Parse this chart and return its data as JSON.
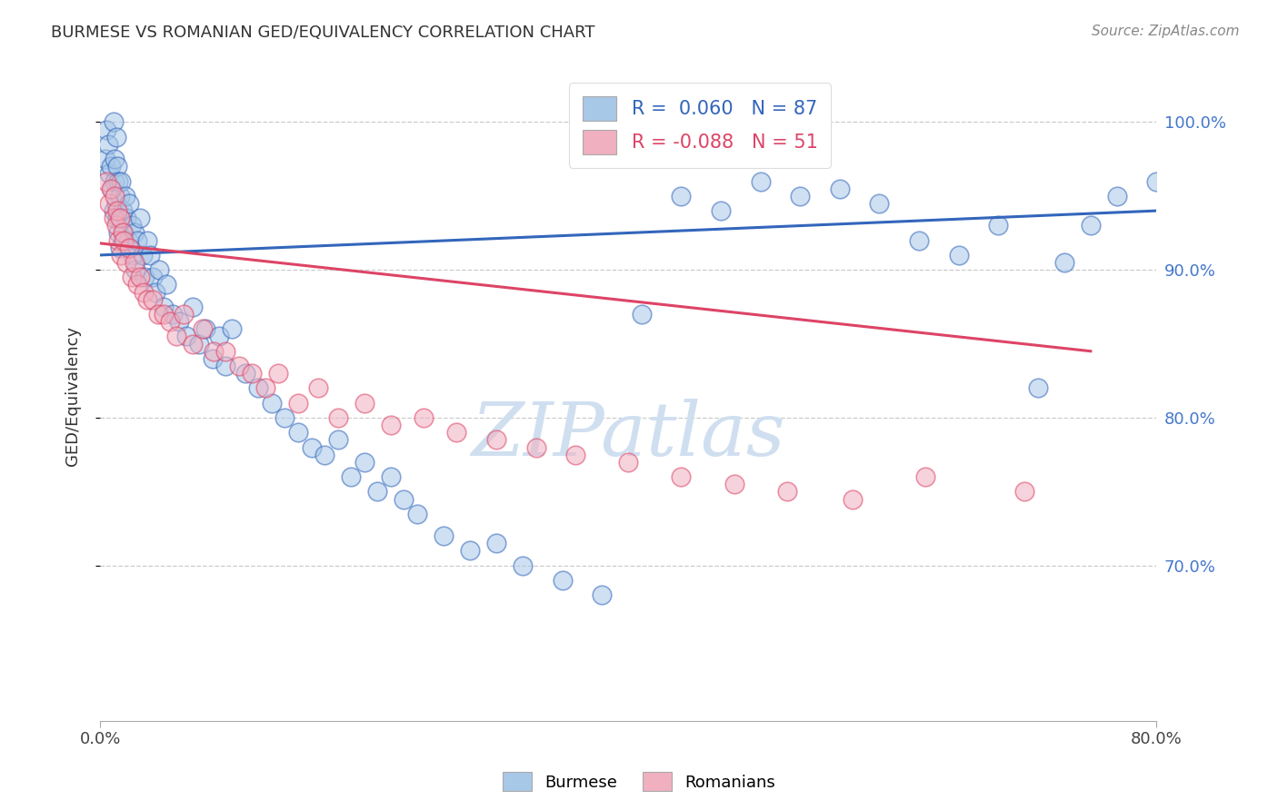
{
  "title": "BURMESE VS ROMANIAN GED/EQUIVALENCY CORRELATION CHART",
  "source": "Source: ZipAtlas.com",
  "ylabel": "GED/Equivalency",
  "ytick_labels": [
    "100.0%",
    "90.0%",
    "80.0%",
    "70.0%"
  ],
  "ytick_values": [
    1.0,
    0.9,
    0.8,
    0.7
  ],
  "xlim": [
    0.0,
    0.8
  ],
  "ylim": [
    0.595,
    1.035
  ],
  "burmese_R": 0.06,
  "burmese_N": 87,
  "romanian_R": -0.088,
  "romanian_N": 51,
  "burmese_color": "#a8c8e8",
  "romanian_color": "#f0b0c0",
  "burmese_line_color": "#3366bb",
  "romanian_line_color": "#dd4466",
  "watermark_color": "#d0dff0",
  "legend_label_color": "#222222",
  "legend_R_color": "#3366bb",
  "legend_N_color": "#222222",
  "burmese_x": [
    0.004,
    0.005,
    0.006,
    0.007,
    0.008,
    0.009,
    0.01,
    0.01,
    0.011,
    0.011,
    0.012,
    0.012,
    0.013,
    0.013,
    0.014,
    0.014,
    0.015,
    0.015,
    0.016,
    0.016,
    0.017,
    0.018,
    0.019,
    0.02,
    0.021,
    0.022,
    0.023,
    0.024,
    0.025,
    0.026,
    0.027,
    0.028,
    0.03,
    0.032,
    0.034,
    0.036,
    0.038,
    0.04,
    0.042,
    0.045,
    0.048,
    0.05,
    0.055,
    0.06,
    0.065,
    0.07,
    0.075,
    0.08,
    0.085,
    0.09,
    0.095,
    0.1,
    0.11,
    0.12,
    0.13,
    0.14,
    0.15,
    0.16,
    0.17,
    0.18,
    0.19,
    0.2,
    0.21,
    0.22,
    0.23,
    0.24,
    0.26,
    0.28,
    0.3,
    0.32,
    0.35,
    0.38,
    0.41,
    0.44,
    0.47,
    0.5,
    0.53,
    0.56,
    0.59,
    0.62,
    0.65,
    0.68,
    0.71,
    0.73,
    0.75,
    0.77,
    0.8
  ],
  "burmese_y": [
    0.975,
    0.995,
    0.985,
    0.965,
    0.97,
    0.955,
    1.0,
    0.94,
    0.96,
    0.975,
    0.945,
    0.99,
    0.935,
    0.97,
    0.925,
    0.96,
    0.915,
    0.95,
    0.935,
    0.96,
    0.94,
    0.925,
    0.95,
    0.935,
    0.92,
    0.945,
    0.915,
    0.93,
    0.91,
    0.925,
    0.9,
    0.92,
    0.935,
    0.91,
    0.895,
    0.92,
    0.91,
    0.895,
    0.885,
    0.9,
    0.875,
    0.89,
    0.87,
    0.865,
    0.855,
    0.875,
    0.85,
    0.86,
    0.84,
    0.855,
    0.835,
    0.86,
    0.83,
    0.82,
    0.81,
    0.8,
    0.79,
    0.78,
    0.775,
    0.785,
    0.76,
    0.77,
    0.75,
    0.76,
    0.745,
    0.735,
    0.72,
    0.71,
    0.715,
    0.7,
    0.69,
    0.68,
    0.87,
    0.95,
    0.94,
    0.96,
    0.95,
    0.955,
    0.945,
    0.92,
    0.91,
    0.93,
    0.82,
    0.905,
    0.93,
    0.95,
    0.96
  ],
  "romanian_x": [
    0.005,
    0.007,
    0.008,
    0.01,
    0.011,
    0.012,
    0.013,
    0.014,
    0.015,
    0.016,
    0.017,
    0.018,
    0.02,
    0.022,
    0.024,
    0.026,
    0.028,
    0.03,
    0.033,
    0.036,
    0.04,
    0.044,
    0.048,
    0.053,
    0.058,
    0.063,
    0.07,
    0.078,
    0.086,
    0.095,
    0.105,
    0.115,
    0.125,
    0.135,
    0.15,
    0.165,
    0.18,
    0.2,
    0.22,
    0.245,
    0.27,
    0.3,
    0.33,
    0.36,
    0.4,
    0.44,
    0.48,
    0.52,
    0.57,
    0.625,
    0.7
  ],
  "romanian_y": [
    0.96,
    0.945,
    0.955,
    0.935,
    0.95,
    0.93,
    0.94,
    0.92,
    0.935,
    0.91,
    0.925,
    0.92,
    0.905,
    0.915,
    0.895,
    0.905,
    0.89,
    0.895,
    0.885,
    0.88,
    0.88,
    0.87,
    0.87,
    0.865,
    0.855,
    0.87,
    0.85,
    0.86,
    0.845,
    0.845,
    0.835,
    0.83,
    0.82,
    0.83,
    0.81,
    0.82,
    0.8,
    0.81,
    0.795,
    0.8,
    0.79,
    0.785,
    0.78,
    0.775,
    0.77,
    0.76,
    0.755,
    0.75,
    0.745,
    0.76,
    0.75
  ],
  "burmese_line_x": [
    0.0,
    0.8
  ],
  "burmese_line_y": [
    0.91,
    0.94
  ],
  "romanian_line_x": [
    0.0,
    0.75
  ],
  "romanian_line_y": [
    0.918,
    0.845
  ]
}
